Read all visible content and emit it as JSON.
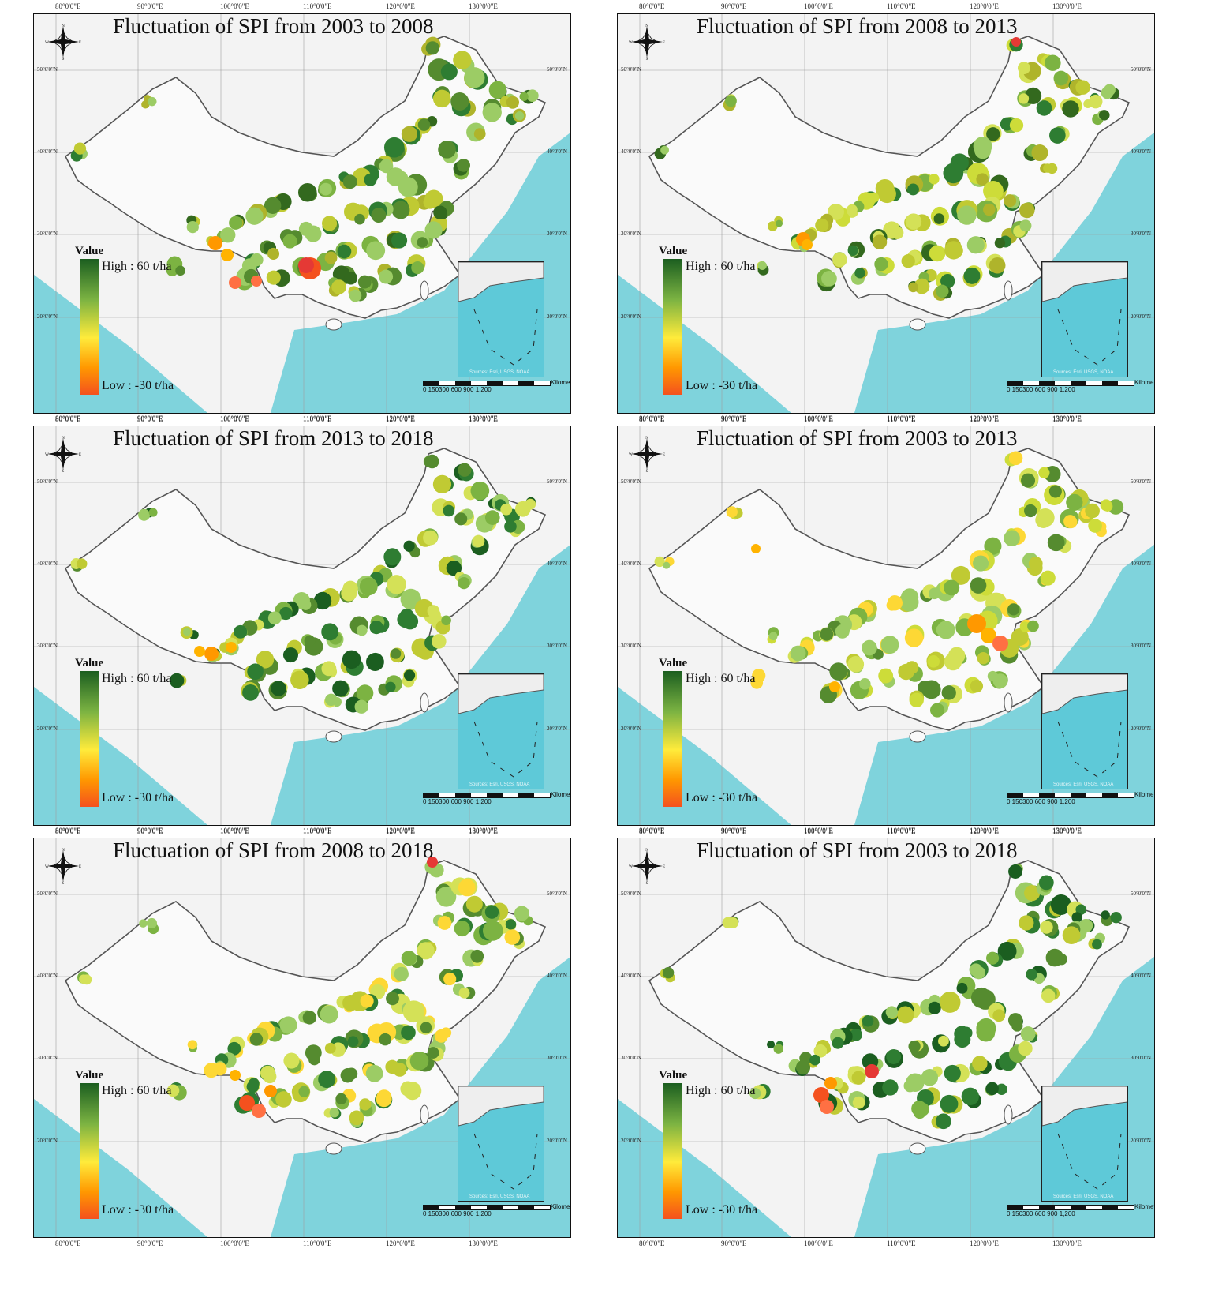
{
  "figure": {
    "panels": [
      {
        "title": "Fluctuation of SPI from 2003 to 2008",
        "variant": 0
      },
      {
        "title": "Fluctuation of SPI from 2008 to 2013",
        "variant": 1
      },
      {
        "title": "Fluctuation of SPI from 2013 to 2018",
        "variant": 2
      },
      {
        "title": "Fluctuation of SPI from 2003 to 2013",
        "variant": 3
      },
      {
        "title": "Fluctuation of SPI from 2008 to 2018",
        "variant": 4
      },
      {
        "title": "Fluctuation of SPI from 2003 to 2018",
        "variant": 5
      }
    ],
    "legend": {
      "title": "Value",
      "high": "High : 60 t/ha",
      "low": "Low : -30 t/ha",
      "colors": [
        "#1b5e20",
        "#7cb342",
        "#ffeb3b",
        "#ff9800",
        "#f4511e"
      ]
    },
    "longitude_labels": [
      "80°0'0\"E",
      "90°0'0\"E",
      "100°0'0\"E",
      "110°0'0\"E",
      "120°0'0\"E",
      "130°0'0\"E"
    ],
    "latitude_labels": [
      "50°0'0\"N",
      "40°0'0\"N",
      "30°0'0\"N",
      "20°0'0\"N"
    ],
    "compass": {
      "n": "N",
      "s": "S",
      "e": "E",
      "w": "W"
    },
    "scalebar": {
      "ticks": "0  150300     600     900     1,200",
      "unit": "Kilometers"
    },
    "inset_source": "Sources: Esri, USGS, NOAA",
    "colors": {
      "sea": "#7fd3dc",
      "land": "#ececec",
      "boundary": "#555555",
      "grid": "#9e9e9e"
    }
  }
}
